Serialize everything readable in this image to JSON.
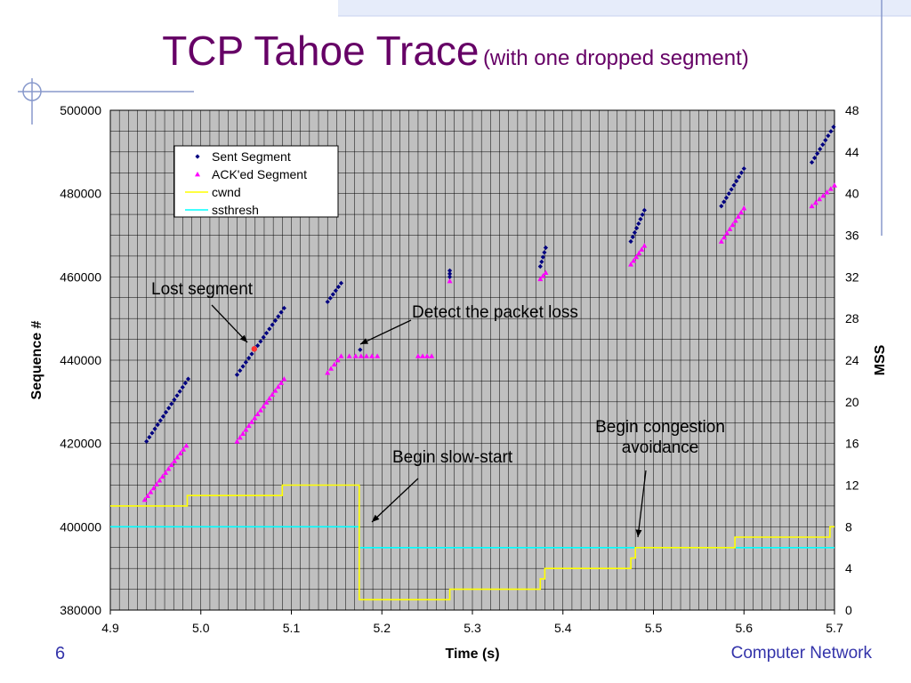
{
  "slide": {
    "title": "TCP Tahoe Trace",
    "subtitle": "(with one dropped segment)",
    "number": "6",
    "footer": "Computer Network",
    "title_color": "#660066",
    "footer_color": "#3333aa"
  },
  "chart_data": {
    "type": "scatter",
    "xlabel": "Time (s)",
    "ylabel": "Sequence #",
    "y2label": "MSS",
    "xlim": [
      4.9,
      5.7
    ],
    "ylim": [
      380000,
      500000
    ],
    "y2lim": [
      0,
      48
    ],
    "x_ticks": [
      "4.9",
      "5.0",
      "5.1",
      "5.2",
      "5.3",
      "5.4",
      "5.5",
      "5.6",
      "5.7"
    ],
    "y_ticks": [
      "380000",
      "400000",
      "420000",
      "440000",
      "460000",
      "480000",
      "500000"
    ],
    "y2_ticks": [
      "0",
      "4",
      "8",
      "12",
      "16",
      "20",
      "24",
      "28",
      "32",
      "36",
      "40",
      "44",
      "48"
    ],
    "grid": true,
    "plot_background": "#c0c0c0",
    "legend": {
      "placement": "top-left",
      "entries": [
        {
          "label": "Sent Segment",
          "color": "#000080",
          "marker": "diamond"
        },
        {
          "label": "ACK'ed Segment",
          "color": "#ff00ff",
          "marker": "triangle"
        },
        {
          "label": "cwnd",
          "color": "#ffff00",
          "marker": "line"
        },
        {
          "label": "ssthresh",
          "color": "#00ffff",
          "marker": "line"
        }
      ]
    },
    "sent_bursts": [
      {
        "x0": 4.94,
        "x1": 4.986,
        "y0": 420500,
        "y1": 435500
      },
      {
        "x0": 5.04,
        "x1": 5.092,
        "y0": 436500,
        "y1": 452500
      },
      {
        "x0": 5.14,
        "x1": 5.155,
        "y0": 454000,
        "y1": 458500
      },
      {
        "x0": 5.275,
        "x1": 5.275,
        "y0": 460000,
        "y1": 461500
      },
      {
        "x0": 5.375,
        "x1": 5.381,
        "y0": 462500,
        "y1": 467000
      },
      {
        "x0": 5.475,
        "x1": 5.49,
        "y0": 468500,
        "y1": 476000
      },
      {
        "x0": 5.575,
        "x1": 5.6,
        "y0": 477000,
        "y1": 486000
      },
      {
        "x0": 5.675,
        "x1": 5.699,
        "y0": 487500,
        "y1": 496000
      }
    ],
    "sent_points": [
      {
        "x": 5.176,
        "y": 442500
      }
    ],
    "lost_segment": {
      "x": 5.059,
      "y": 442700,
      "color": "#ff3333"
    },
    "ack_bursts": [
      {
        "x0": 4.938,
        "x1": 4.984,
        "y0": 406500,
        "y1": 419500
      },
      {
        "x0": 5.04,
        "x1": 5.092,
        "y0": 420500,
        "y1": 435500
      },
      {
        "x0": 5.14,
        "x1": 5.155,
        "y0": 437000,
        "y1": 441000
      },
      {
        "x0": 5.375,
        "x1": 5.381,
        "y0": 459500,
        "y1": 461000
      },
      {
        "x0": 5.475,
        "x1": 5.49,
        "y0": 463000,
        "y1": 467500
      },
      {
        "x0": 5.575,
        "x1": 5.6,
        "y0": 468500,
        "y1": 476500
      },
      {
        "x0": 5.675,
        "x1": 5.7,
        "y0": 477000,
        "y1": 482000
      }
    ],
    "ack_points": [
      {
        "x": 5.164,
        "y": 441000
      },
      {
        "x": 5.171,
        "y": 441000
      },
      {
        "x": 5.177,
        "y": 441000
      },
      {
        "x": 5.183,
        "y": 441000
      },
      {
        "x": 5.189,
        "y": 441000
      },
      {
        "x": 5.195,
        "y": 441000
      },
      {
        "x": 5.24,
        "y": 441000
      },
      {
        "x": 5.245,
        "y": 441000
      },
      {
        "x": 5.25,
        "y": 441000
      },
      {
        "x": 5.255,
        "y": 441000
      },
      {
        "x": 5.275,
        "y": 459000
      }
    ],
    "cwnd": [
      [
        4.9,
        10
      ],
      [
        4.985,
        10
      ],
      [
        4.985,
        11
      ],
      [
        5.09,
        11
      ],
      [
        5.09,
        12
      ],
      [
        5.175,
        12
      ],
      [
        5.175,
        1
      ],
      [
        5.275,
        1
      ],
      [
        5.275,
        2
      ],
      [
        5.375,
        2
      ],
      [
        5.375,
        3
      ],
      [
        5.38,
        3
      ],
      [
        5.38,
        4
      ],
      [
        5.475,
        4
      ],
      [
        5.475,
        5
      ],
      [
        5.48,
        5
      ],
      [
        5.48,
        6
      ],
      [
        5.59,
        6
      ],
      [
        5.59,
        7
      ],
      [
        5.695,
        7
      ],
      [
        5.695,
        8
      ],
      [
        5.7,
        8
      ]
    ],
    "ssthresh": [
      [
        4.9,
        8
      ],
      [
        5.175,
        8
      ],
      [
        5.175,
        6
      ],
      [
        5.7,
        6
      ]
    ],
    "annotations": [
      {
        "text": "Lost segment"
      },
      {
        "text": "Detect the packet loss"
      },
      {
        "text": "Begin slow-start"
      },
      {
        "text": "Begin congestion"
      },
      {
        "text": "avoidance"
      }
    ]
  }
}
